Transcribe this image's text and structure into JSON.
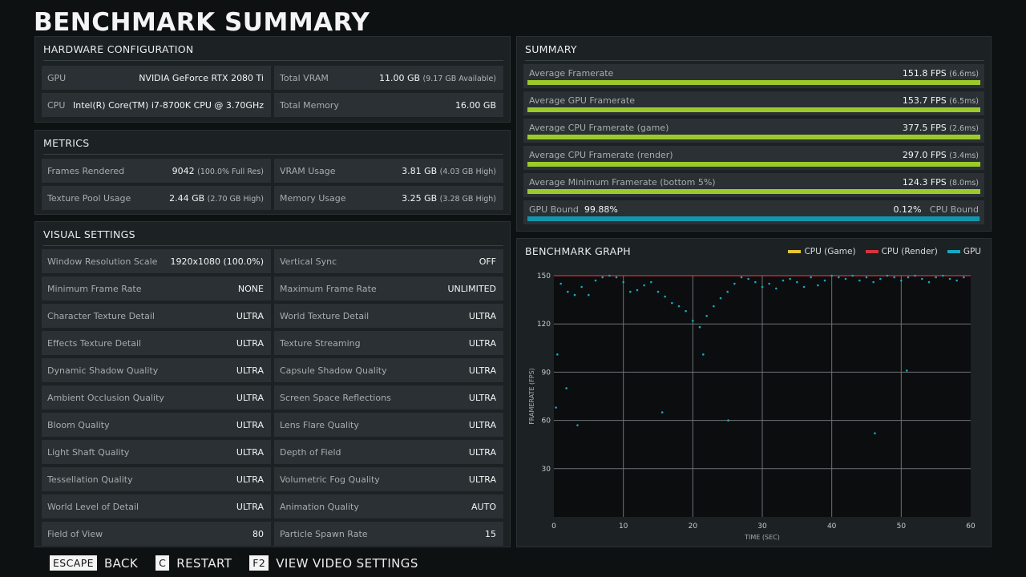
{
  "title": "BENCHMARK SUMMARY",
  "hardware": {
    "title": "HARDWARE CONFIGURATION",
    "gpu_label": "GPU",
    "gpu_value": "NVIDIA GeForce RTX 2080 Ti",
    "vram_label": "Total VRAM",
    "vram_value": "11.00 GB",
    "vram_sub": "(9.17 GB Available)",
    "cpu_label": "CPU",
    "cpu_value": "Intel(R) Core(TM) i7-8700K CPU @ 3.70GHz",
    "mem_label": "Total Memory",
    "mem_value": "16.00 GB"
  },
  "metrics": {
    "title": "METRICS",
    "frames_label": "Frames Rendered",
    "frames_value": "9042",
    "frames_sub": "(100.0% Full Res)",
    "vram_label": "VRAM Usage",
    "vram_value": "3.81 GB",
    "vram_sub": "(4.03 GB High)",
    "pool_label": "Texture Pool Usage",
    "pool_value": "2.44 GB",
    "pool_sub": "(2.70 GB High)",
    "mem_label": "Memory Usage",
    "mem_value": "3.25 GB",
    "mem_sub": "(3.28 GB High)"
  },
  "visual": {
    "title": "VISUAL SETTINGS",
    "rows": [
      {
        "l1": "Window Resolution Scale",
        "v1": "1920x1080 (100.0%)",
        "l2": "Vertical Sync",
        "v2": "OFF"
      },
      {
        "l1": "Minimum Frame Rate",
        "v1": "NONE",
        "l2": "Maximum Frame Rate",
        "v2": "UNLIMITED"
      },
      {
        "l1": "Character Texture Detail",
        "v1": "ULTRA",
        "l2": "World Texture Detail",
        "v2": "ULTRA"
      },
      {
        "l1": "Effects Texture Detail",
        "v1": "ULTRA",
        "l2": "Texture Streaming",
        "v2": "ULTRA"
      },
      {
        "l1": "Dynamic Shadow Quality",
        "v1": "ULTRA",
        "l2": "Capsule Shadow Quality",
        "v2": "ULTRA"
      },
      {
        "l1": "Ambient Occlusion Quality",
        "v1": "ULTRA",
        "l2": "Screen Space Reflections",
        "v2": "ULTRA"
      },
      {
        "l1": "Bloom Quality",
        "v1": "ULTRA",
        "l2": "Lens Flare Quality",
        "v2": "ULTRA"
      },
      {
        "l1": "Light Shaft Quality",
        "v1": "ULTRA",
        "l2": "Depth of Field",
        "v2": "ULTRA"
      },
      {
        "l1": "Tessellation Quality",
        "v1": "ULTRA",
        "l2": "Volumetric Fog Quality",
        "v2": "ULTRA"
      },
      {
        "l1": "World Level of Detail",
        "v1": "ULTRA",
        "l2": "Animation Quality",
        "v2": "AUTO"
      },
      {
        "l1": "Field of View",
        "v1": "80",
        "l2": "Particle Spawn Rate",
        "v2": "15"
      }
    ]
  },
  "summary": {
    "title": "SUMMARY",
    "rows": [
      {
        "label": "Average Framerate",
        "value": "151.8 FPS",
        "sub": "(6.6ms)",
        "level": 1.0
      },
      {
        "label": "Average GPU Framerate",
        "value": "153.7 FPS",
        "sub": "(6.5ms)",
        "level": 1.0
      },
      {
        "label": "Average CPU Framerate (game)",
        "value": "377.5 FPS",
        "sub": "(2.6ms)",
        "level": 1.0
      },
      {
        "label": "Average CPU Framerate (render)",
        "value": "297.0 FPS",
        "sub": "(3.4ms)",
        "level": 1.0
      },
      {
        "label": "Average Minimum Framerate (bottom 5%)",
        "value": "124.3 FPS",
        "sub": "(8.0ms)",
        "level": 1.0
      }
    ],
    "bound": {
      "gpu_label": "GPU Bound",
      "gpu_value": "99.88%",
      "cpu_value": "0.12%",
      "cpu_label": "CPU Bound",
      "gpu_fraction": 0.9988
    }
  },
  "graph": {
    "title": "BENCHMARK GRAPH",
    "legend": [
      {
        "name": "CPU (Game)",
        "color": "#e8c53a"
      },
      {
        "name": "CPU (Render)",
        "color": "#d8343c"
      },
      {
        "name": "GPU",
        "color": "#18a8c4"
      }
    ]
  },
  "chart_data": {
    "type": "scatter",
    "xlabel": "TIME (SEC)",
    "ylabel": "FRAMERATE (FPS)",
    "xlim": [
      0,
      60
    ],
    "ylim": [
      0,
      150
    ],
    "xticks": [
      0,
      10,
      20,
      30,
      40,
      50,
      60
    ],
    "yticks": [
      30,
      60,
      90,
      120,
      150
    ],
    "grid": true,
    "series": [
      {
        "name": "CPU (Render)",
        "color": "#d8343c",
        "style": "line",
        "x": [
          0,
          60
        ],
        "y": [
          150,
          150
        ]
      },
      {
        "name": "GPU",
        "color": "#18a8c4",
        "style": "points",
        "x": [
          1,
          2,
          3,
          4,
          5,
          6,
          7,
          8,
          9,
          10,
          11,
          12,
          13,
          14,
          15,
          16,
          17,
          18,
          19,
          20,
          21,
          22,
          23,
          24,
          25,
          26,
          27,
          28,
          29,
          30,
          31,
          32,
          33,
          34,
          35,
          36,
          37,
          38,
          39,
          40,
          41,
          42,
          43,
          44,
          45,
          46,
          47,
          48,
          49,
          50,
          51,
          52,
          53,
          54,
          55,
          56,
          57,
          58,
          59
        ],
        "y": [
          145,
          140,
          138,
          143,
          138,
          147,
          149,
          150,
          149,
          146,
          140,
          141,
          144,
          146,
          140,
          137,
          133,
          131,
          128,
          122,
          118,
          125,
          131,
          136,
          140,
          145,
          149,
          148,
          146,
          143,
          145,
          142,
          147,
          148,
          146,
          143,
          149,
          144,
          147,
          150,
          149,
          148,
          150,
          147,
          149,
          146,
          148,
          150,
          149,
          147,
          149,
          150,
          148,
          146,
          149,
          150,
          148,
          147,
          149
        ]
      },
      {
        "name": "GPU outliers",
        "color": "#18a8c4",
        "style": "points",
        "x": [
          0.3,
          0.5,
          1.8,
          3.4,
          15.6,
          21.5,
          25.1,
          46.2,
          50.8
        ],
        "y": [
          68,
          101,
          80,
          57,
          65,
          101,
          60,
          52,
          91
        ]
      }
    ]
  },
  "footer": [
    {
      "key": "ESCAPE",
      "label": "BACK"
    },
    {
      "key": "C",
      "label": "RESTART"
    },
    {
      "key": "F2",
      "label": "VIEW VIDEO SETTINGS"
    }
  ]
}
